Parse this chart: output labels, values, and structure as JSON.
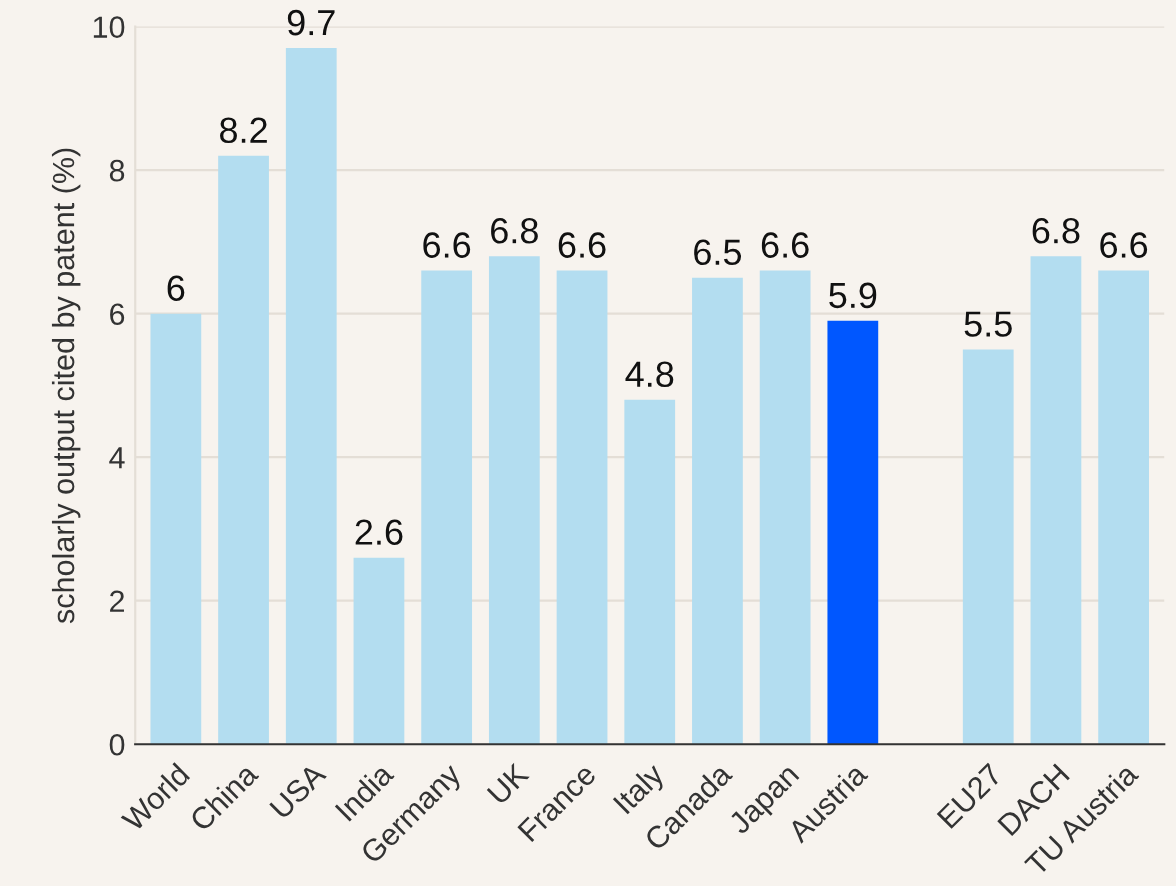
{
  "chart_data": {
    "type": "bar",
    "ylabel": "scholarly output cited by patent (%)",
    "categories": [
      "World",
      "China",
      "USA",
      "India",
      "Germany",
      "UK",
      "France",
      "Italy",
      "Canada",
      "Japan",
      "Austria",
      null,
      "EU27",
      "DACH",
      "TU Austria"
    ],
    "values": [
      6,
      8.2,
      9.7,
      2.6,
      6.6,
      6.8,
      6.6,
      4.8,
      6.5,
      6.6,
      5.9,
      null,
      5.5,
      6.8,
      6.6
    ],
    "colors": [
      "#b3ddf0",
      "#b3ddf0",
      "#b3ddf0",
      "#b3ddf0",
      "#b3ddf0",
      "#b3ddf0",
      "#b3ddf0",
      "#b3ddf0",
      "#b3ddf0",
      "#b3ddf0",
      "#0057ff",
      "#b3ddf0",
      "#b3ddf0",
      "#b3ddf0",
      "#b3ddf0"
    ],
    "ylim": [
      0,
      10
    ],
    "yticks": [
      0,
      2,
      4,
      6,
      8,
      10
    ],
    "grid": "y",
    "data_labels": true,
    "legend": false
  }
}
